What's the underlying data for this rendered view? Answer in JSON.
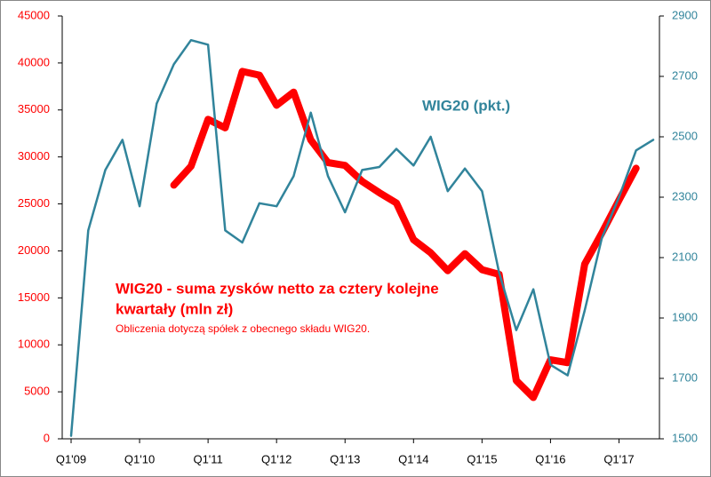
{
  "chart_data": {
    "type": "line",
    "categories": [
      "Q1'09",
      null,
      null,
      null,
      "Q1'10",
      null,
      null,
      null,
      "Q1'11",
      null,
      null,
      null,
      "Q1'12",
      null,
      null,
      null,
      "Q1'13",
      null,
      null,
      null,
      "Q1'14",
      null,
      null,
      null,
      "Q1'15",
      null,
      null,
      null,
      "Q1'16",
      null,
      null,
      null,
      "Q1'17",
      null,
      null
    ],
    "series": [
      {
        "name": null,
        "color": "#ff0000",
        "axis": "y",
        "values": [
          null,
          null,
          null,
          null,
          null,
          null,
          27000,
          29000,
          34000,
          33100,
          39100,
          38700,
          35500,
          36900,
          31800,
          29400,
          29100,
          27400,
          26200,
          25100,
          21200,
          19800,
          17900,
          19700,
          18000,
          17500,
          6200,
          4400,
          8400,
          8100,
          18600,
          21900,
          25400,
          28800,
          null
        ]
      },
      {
        "name": "WIG20 (pkt.)",
        "color": "#31849b",
        "axis": "y2",
        "values": [
          1510,
          2190,
          2390,
          2490,
          2270,
          2610,
          2740,
          2820,
          2805,
          2190,
          2150,
          2280,
          2270,
          2370,
          2580,
          2370,
          2250,
          2390,
          2400,
          2460,
          2405,
          2500,
          2320,
          2395,
          2320,
          2050,
          1860,
          1995,
          1745,
          1710,
          1925,
          2165,
          2300,
          2455,
          2490
        ]
      }
    ],
    "annotations": [
      "WIG20 - suma zysków netto za cztery kolejne",
      "kwartały (mln zł)",
      "Obliczenia dotyczą spółek z obecnego składu WIG20."
    ],
    "ylim": [
      0,
      45000
    ],
    "yticks": [
      0,
      5000,
      10000,
      15000,
      20000,
      25000,
      30000,
      35000,
      40000,
      45000
    ],
    "y2lim": [
      1500,
      2900
    ],
    "y2ticks": [
      1500,
      1700,
      1900,
      2100,
      2300,
      2500,
      2700,
      2900
    ],
    "ytick_color": "#ff0000",
    "y2tick_color": "#31849b",
    "grid": false
  }
}
